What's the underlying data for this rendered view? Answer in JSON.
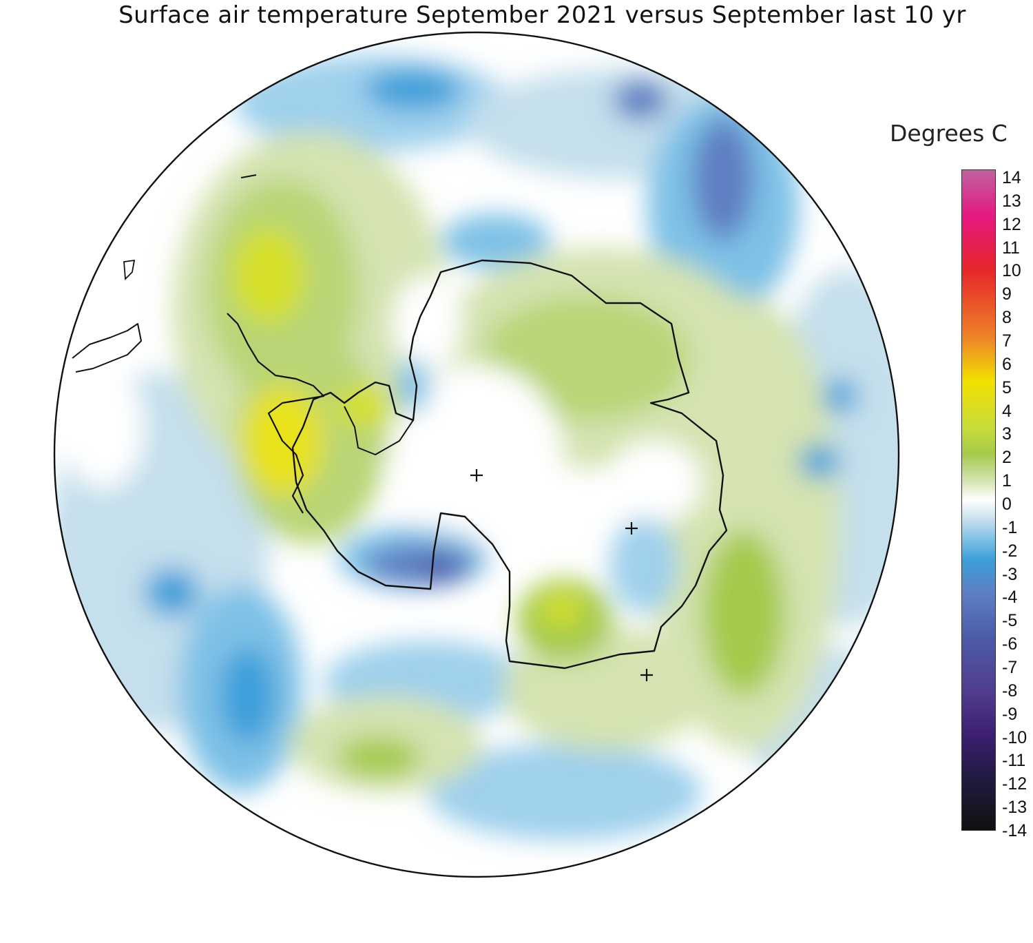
{
  "title": "Surface air temperature September 2021 versus September last 10 yr",
  "legend": {
    "title": "Degrees C",
    "ticks": [
      "14",
      "13",
      "12",
      "11",
      "10",
      "9",
      "8",
      "7",
      "6",
      "5",
      "4",
      "3",
      "2",
      "1",
      "0",
      "-1",
      "-2",
      "-3",
      "-4",
      "-5",
      "-6",
      "-7",
      "-8",
      "-9",
      "-10",
      "-11",
      "-12",
      "-13",
      "-14"
    ],
    "colors": {
      "pos14": "#c0619f",
      "pos12": "#e5197f",
      "pos10": "#e5262b",
      "pos7": "#ee7f2a",
      "pos5": "#f2e000",
      "pos3": "#c8dc3a",
      "pos2": "#a4ca4c",
      "pos1": "#d4e3b0",
      "zero": "#ffffff",
      "neg1": "#c5dfec",
      "neg2": "#7ec1e6",
      "neg3": "#3d9fda",
      "neg4": "#5e7fc3",
      "neg6": "#4b5aa8",
      "neg8": "#513c8e",
      "neg10": "#3c1e6e",
      "neg12": "#1e1a3a",
      "neg14": "#111111"
    }
  },
  "map": {
    "projection": "south polar stereographic",
    "background_color": "#ffffff",
    "outline_color": "#111111",
    "continent_outline": "antarctica",
    "markers": [
      "plus",
      "plus",
      "plus"
    ]
  }
}
